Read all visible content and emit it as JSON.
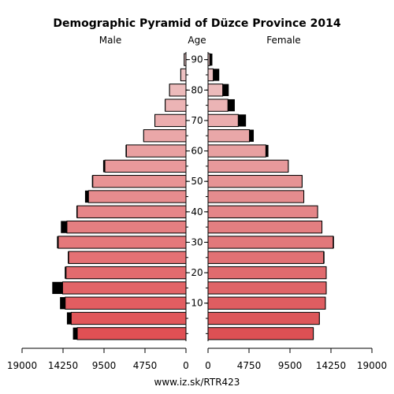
{
  "chart_data": {
    "type": "bar",
    "title": "Demographic Pyramid of Düzce Province 2014",
    "left_label": "Male",
    "center_label": "Age",
    "right_label": "Female",
    "age_groups": [
      "0-4",
      "5-9",
      "10-14",
      "15-19",
      "20-24",
      "25-29",
      "30-34",
      "35-39",
      "40-44",
      "45-49",
      "50-54",
      "55-59",
      "60-64",
      "65-69",
      "70-74",
      "75-79",
      "80-84",
      "85-89",
      "90+"
    ],
    "age_ticks": [
      "10",
      "20",
      "30",
      "40",
      "50",
      "60",
      "70",
      "80",
      "90"
    ],
    "x_ticks_male": [
      "19000",
      "14250",
      "9500",
      "4750",
      "0"
    ],
    "x_ticks_female": [
      "0",
      "4750",
      "9500",
      "14250",
      "19000"
    ],
    "xlim": [
      0,
      19000
    ],
    "series": [
      {
        "name": "Male",
        "values": [
          12600,
          13300,
          14000,
          14300,
          13900,
          13600,
          14800,
          13800,
          12600,
          11300,
          10800,
          9400,
          6900,
          4900,
          3600,
          2400,
          1900,
          600,
          200
        ],
        "extra": [
          500,
          500,
          600,
          1200,
          150,
          100,
          150,
          700,
          100,
          400,
          100,
          200,
          100,
          50,
          50,
          50,
          50,
          50,
          50
        ]
      },
      {
        "name": "Female",
        "values": [
          12200,
          12900,
          13600,
          13700,
          13700,
          13400,
          14500,
          13200,
          12700,
          11100,
          10900,
          9300,
          6700,
          4800,
          3500,
          2300,
          1700,
          600,
          200
        ],
        "extra": [
          50,
          50,
          50,
          50,
          50,
          100,
          100,
          50,
          50,
          50,
          50,
          50,
          300,
          500,
          900,
          800,
          700,
          700,
          300
        ]
      }
    ],
    "source": "www.iz.sk/RTR423"
  }
}
